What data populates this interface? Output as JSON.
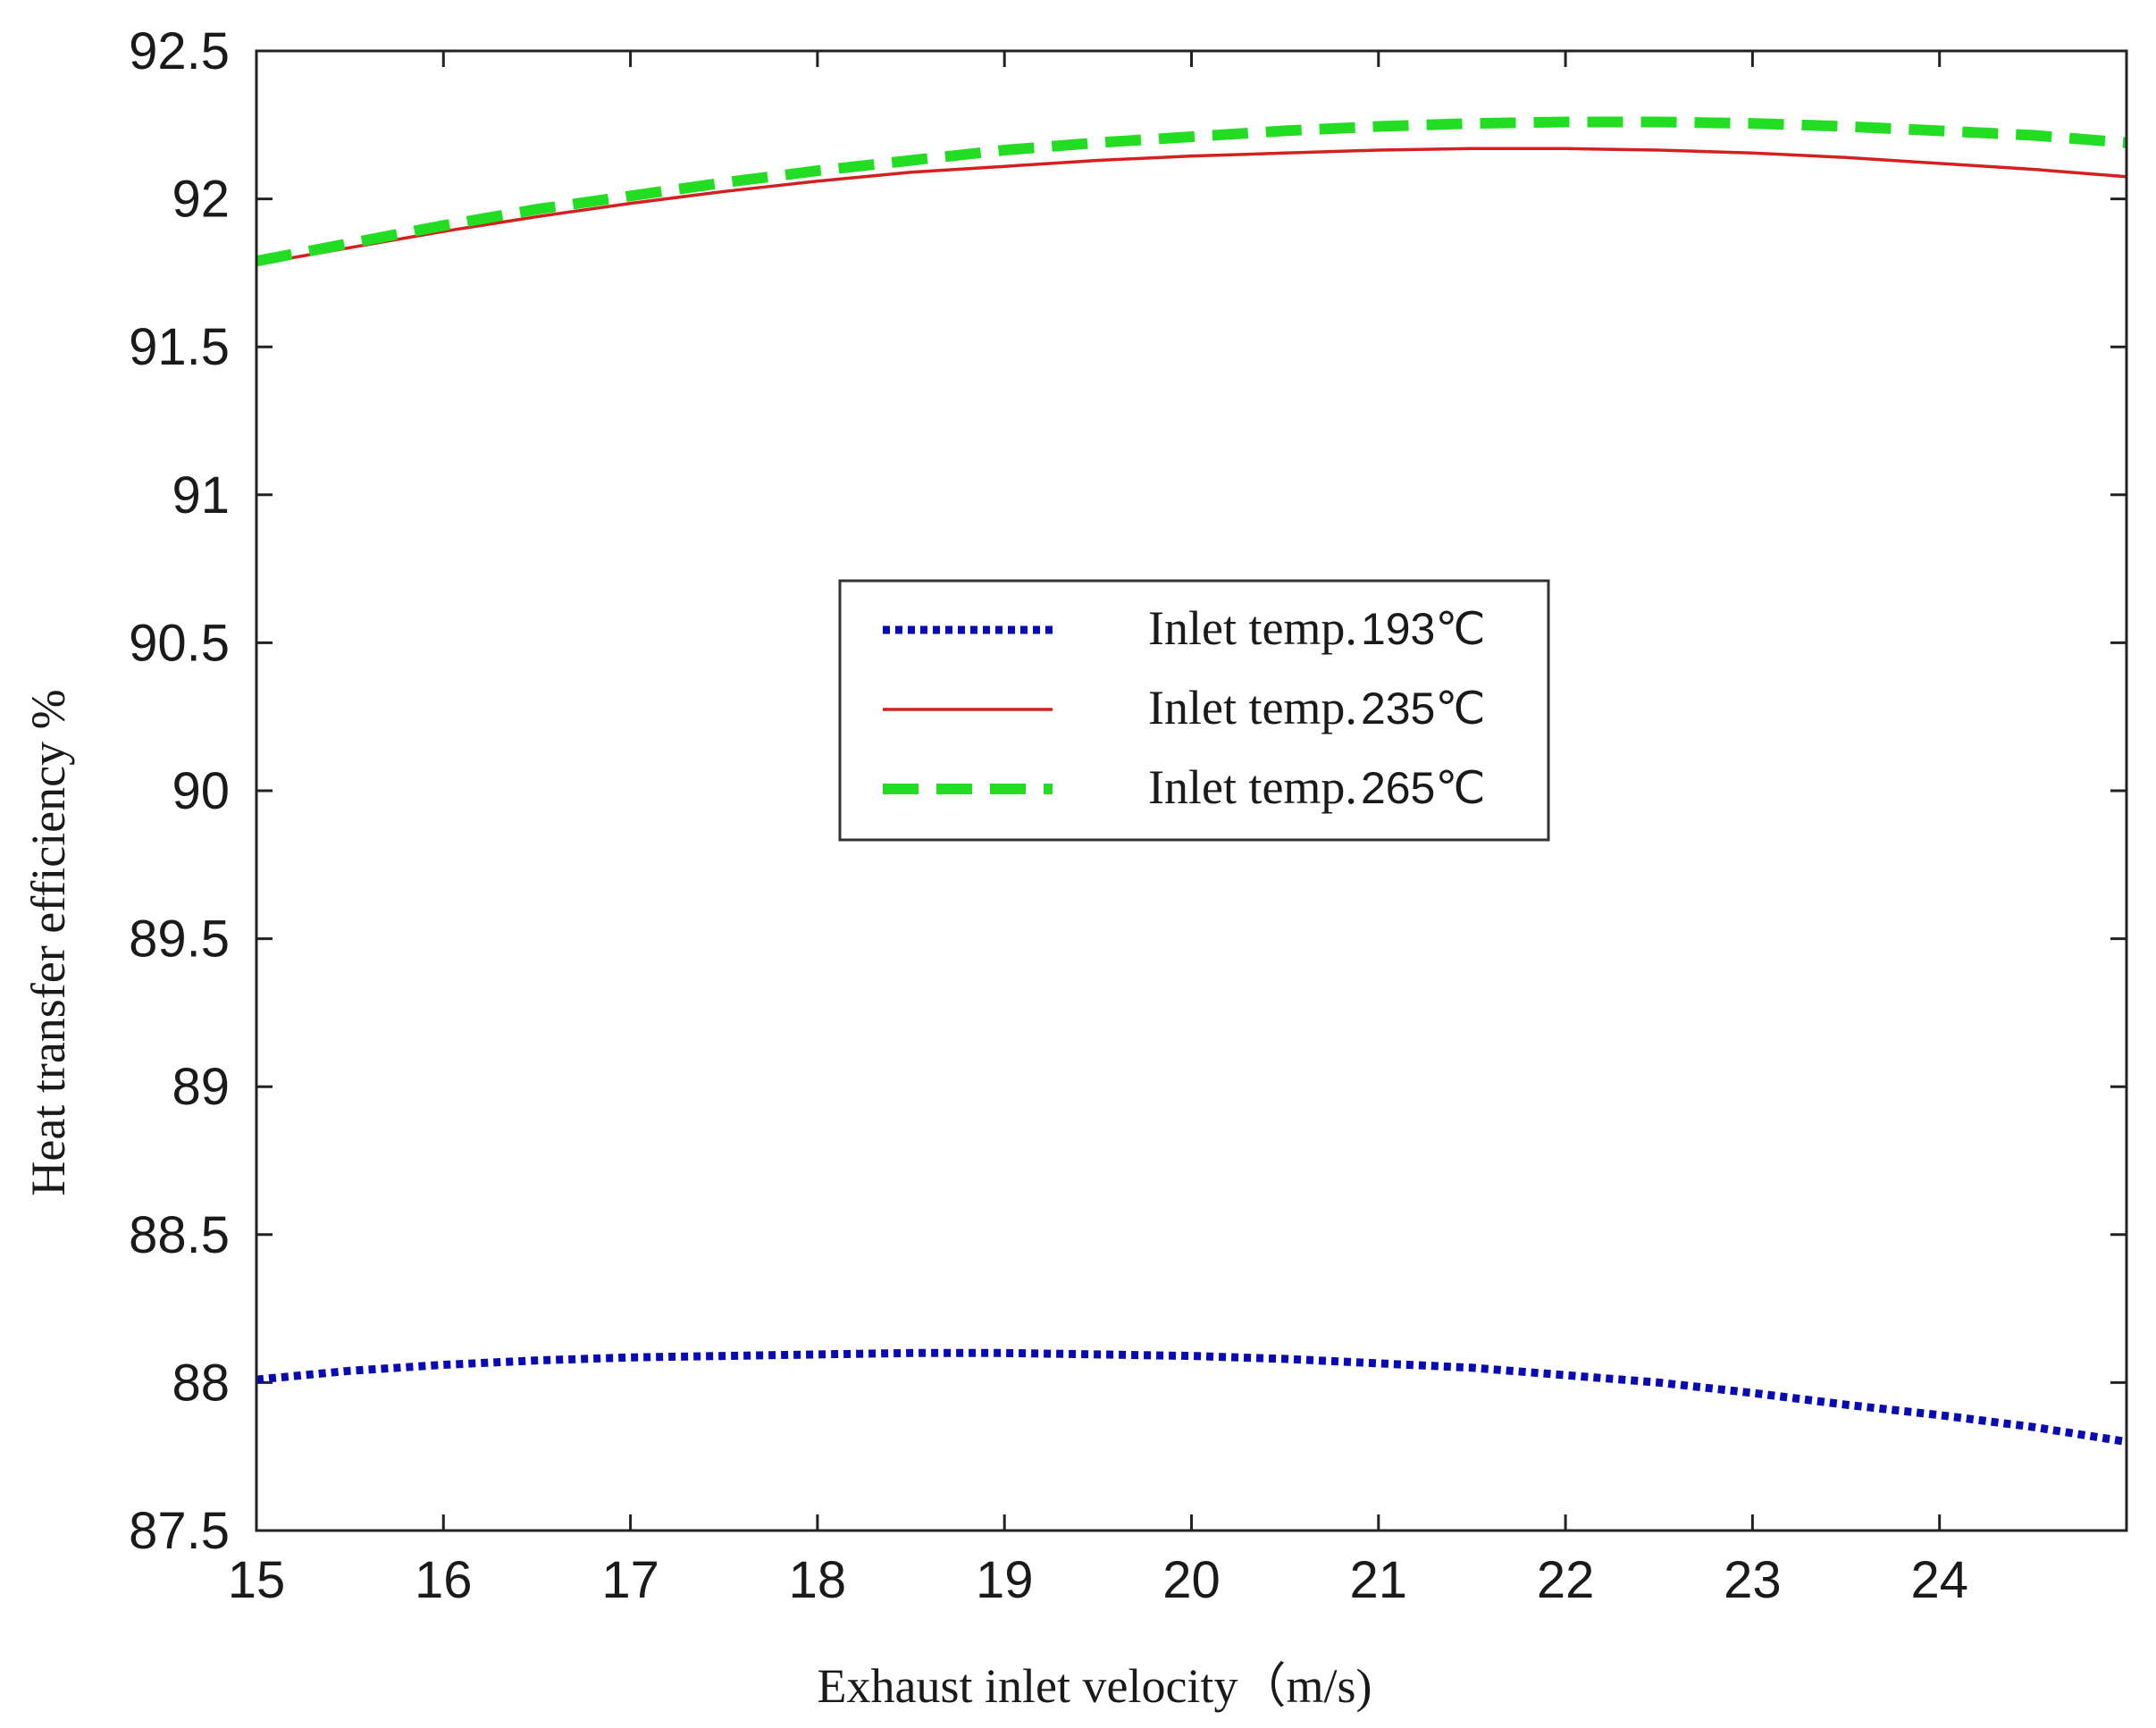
{
  "chart_data": {
    "type": "line",
    "title": "",
    "xlabel": "Exhaust inlet velocity（m/s)",
    "ylabel": "Heat transfer efficiency %",
    "xlim": [
      15,
      25
    ],
    "ylim": [
      87.5,
      92.5
    ],
    "xticks": [
      15,
      16,
      17,
      18,
      19,
      20,
      21,
      22,
      23,
      24
    ],
    "xtick_labels": [
      "15",
      "16",
      "17",
      "18",
      "19",
      "20",
      "21",
      "22",
      "23",
      "24"
    ],
    "yticks": [
      87.5,
      88,
      88.5,
      89,
      89.5,
      90,
      90.5,
      91,
      91.5,
      92,
      92.5
    ],
    "ytick_labels": [
      "87.5",
      "88",
      "88.5",
      "89",
      "89.5",
      "90",
      "90.5",
      "91",
      "91.5",
      "92",
      "92.5"
    ],
    "grid": false,
    "legend_position": "center",
    "series": [
      {
        "name": "Inlet temp.193℃",
        "label_text": "Inlet temp.",
        "label_value": "193℃",
        "color": "#0a0ab4",
        "style": "dotted",
        "x": [
          15,
          15.5,
          16,
          16.5,
          17,
          17.5,
          18,
          18.5,
          19,
          19.5,
          20,
          20.5,
          21,
          21.5,
          22,
          22.5,
          23,
          23.5,
          24,
          24.5,
          25
        ],
        "y": [
          88.01,
          88.04,
          88.06,
          88.075,
          88.085,
          88.09,
          88.095,
          88.1,
          88.1,
          88.095,
          88.09,
          88.08,
          88.065,
          88.05,
          88.025,
          88.0,
          87.965,
          87.925,
          87.89,
          87.85,
          87.8
        ]
      },
      {
        "name": "Inlet temp.235℃",
        "label_text": "Inlet temp.",
        "label_value": "235℃",
        "color": "#d42020",
        "style": "solid",
        "x": [
          15,
          15.5,
          16,
          16.5,
          17,
          17.5,
          18,
          18.5,
          19,
          19.5,
          20,
          20.5,
          21,
          21.5,
          22,
          22.5,
          23,
          23.5,
          24,
          24.5,
          25
        ],
        "y": [
          91.78,
          91.835,
          91.89,
          91.94,
          91.985,
          92.025,
          92.06,
          92.09,
          92.11,
          92.13,
          92.145,
          92.155,
          92.165,
          92.17,
          92.17,
          92.165,
          92.155,
          92.14,
          92.12,
          92.1,
          92.075
        ]
      },
      {
        "name": "Inlet temp.265℃",
        "label_text": "Inlet temp.",
        "label_value": "265℃",
        "color": "#22dd22",
        "style": "dashed",
        "x": [
          15,
          15.5,
          16,
          16.5,
          17,
          17.5,
          18,
          18.5,
          19,
          19.5,
          20,
          20.5,
          21,
          21.5,
          22,
          22.5,
          23,
          23.5,
          24,
          24.5,
          25
        ],
        "y": [
          91.79,
          91.85,
          91.91,
          91.965,
          92.01,
          92.055,
          92.095,
          92.13,
          92.165,
          92.19,
          92.21,
          92.23,
          92.245,
          92.255,
          92.26,
          92.26,
          92.255,
          92.245,
          92.23,
          92.215,
          92.19
        ]
      }
    ]
  }
}
